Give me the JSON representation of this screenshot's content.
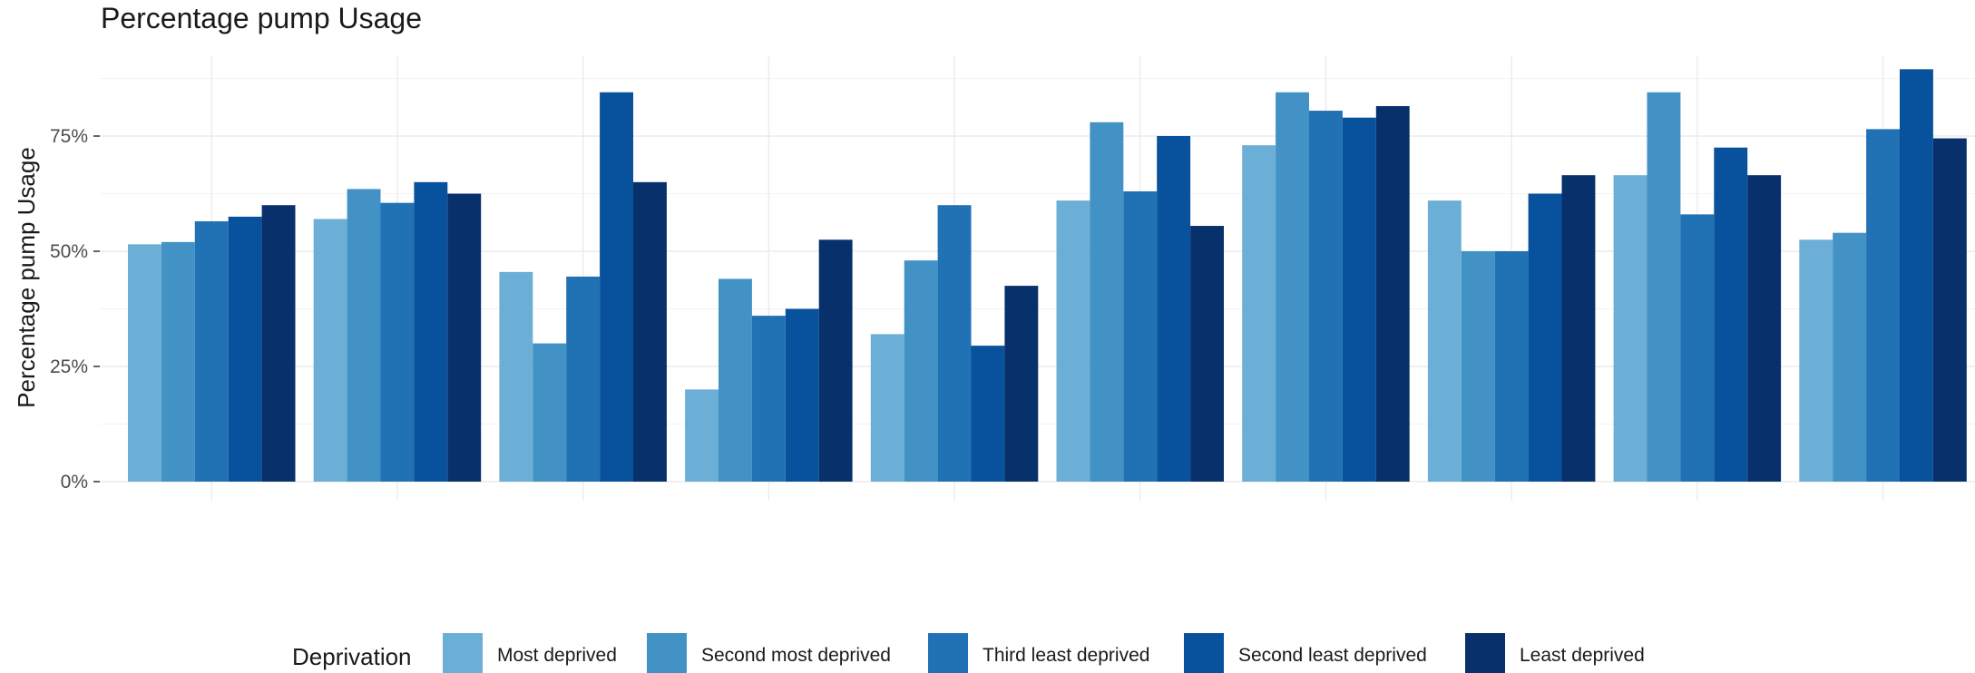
{
  "chart_data": {
    "type": "bar",
    "title": "Percentage pump Usage",
    "ylabel": "Percentage pump Usage",
    "xlabel": "",
    "ylim": [
      0,
      95
    ],
    "yticks": [
      0,
      25,
      50,
      75
    ],
    "ytick_labels": [
      "0%",
      "25%",
      "50%",
      "75%"
    ],
    "grid": true,
    "legend": {
      "title": "Deprivation",
      "position": "bottom"
    },
    "categories": [
      "",
      "",
      "",
      "",
      "",
      "",
      "",
      "",
      "",
      ""
    ],
    "series": [
      {
        "name": "Most deprived",
        "color": "#6baed6",
        "values": [
          51.5,
          57,
          45.5,
          20,
          32,
          61,
          73,
          61,
          66.5,
          52.5
        ]
      },
      {
        "name": "Second most deprived",
        "color": "#4292c6",
        "values": [
          52,
          63.5,
          30,
          44,
          48,
          78,
          84.5,
          50,
          84.5,
          54
        ]
      },
      {
        "name": "Third least deprived",
        "color": "#2171b5",
        "values": [
          56.5,
          60.5,
          44.5,
          36,
          60,
          63,
          80.5,
          50,
          58,
          76.5
        ]
      },
      {
        "name": "Second least deprived",
        "color": "#08519c",
        "values": [
          57.5,
          65,
          84.5,
          37.5,
          29.5,
          75,
          79,
          62.5,
          72.5,
          89.5
        ]
      },
      {
        "name": "Least deprived",
        "color": "#08306b",
        "values": [
          60,
          62.5,
          65,
          52.5,
          42.5,
          55.5,
          81.5,
          66.5,
          66.5,
          74.5
        ]
      }
    ]
  }
}
